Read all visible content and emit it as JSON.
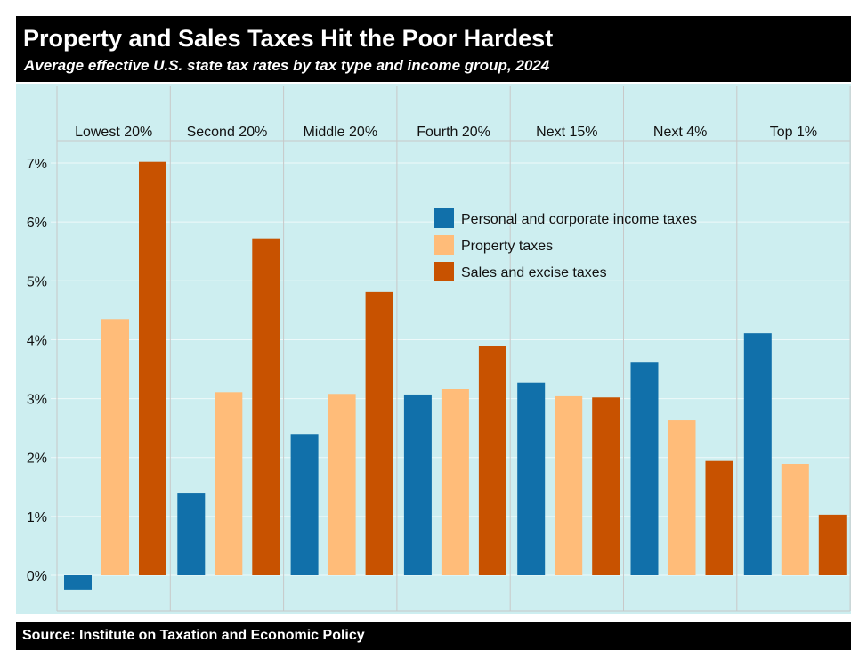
{
  "header": {
    "title": "Property and Sales Taxes Hit the Poor Hardest",
    "subtitle": "Average effective U.S. state tax rates by tax type and income group, 2024"
  },
  "footer": {
    "source": "Source: Institute on Taxation and Economic Policy"
  },
  "chart_data": {
    "type": "bar",
    "categories": [
      "Lowest 20%",
      "Second 20%",
      "Middle 20%",
      "Fourth 20%",
      "Next 15%",
      "Next 4%",
      "Top 1%"
    ],
    "series": [
      {
        "name": "Personal and corporate income taxes",
        "color": "#1170aa",
        "values": [
          -0.24,
          1.39,
          2.4,
          3.07,
          3.27,
          3.61,
          4.11
        ]
      },
      {
        "name": "Property taxes",
        "color": "#ffbc79",
        "values": [
          4.35,
          3.11,
          3.08,
          3.16,
          3.04,
          2.63,
          1.89
        ]
      },
      {
        "name": "Sales and excise taxes",
        "color": "#c85200",
        "values": [
          7.02,
          5.72,
          4.81,
          3.89,
          3.02,
          1.94,
          1.03
        ]
      }
    ],
    "yticks": [
      "0%",
      "1%",
      "2%",
      "3%",
      "4%",
      "5%",
      "6%",
      "7%"
    ],
    "ylim": [
      -0.6,
      7.4
    ],
    "grid": true,
    "legend": "top-right",
    "background": "#cdeef0"
  }
}
